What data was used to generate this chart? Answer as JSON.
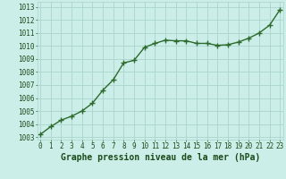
{
  "x": [
    0,
    1,
    2,
    3,
    4,
    5,
    6,
    7,
    8,
    9,
    10,
    11,
    12,
    13,
    14,
    15,
    16,
    17,
    18,
    19,
    20,
    21,
    22,
    23
  ],
  "y": [
    1003.2,
    1003.8,
    1004.3,
    1004.6,
    1005.0,
    1005.6,
    1006.6,
    1007.4,
    1008.7,
    1008.9,
    1009.9,
    1010.2,
    1010.45,
    1010.4,
    1010.4,
    1010.2,
    1010.2,
    1010.05,
    1010.1,
    1010.3,
    1010.6,
    1011.0,
    1011.6,
    1012.8
  ],
  "line_color": "#2d6a2d",
  "marker": "+",
  "marker_size": 4,
  "line_width": 1.0,
  "bg_color": "#cceee8",
  "grid_color": "#aad4cc",
  "xlabel": "Graphe pression niveau de la mer (hPa)",
  "xlabel_fontsize": 7,
  "xlabel_color": "#1a4a1a",
  "xlabel_bold": true,
  "yticks": [
    1003,
    1004,
    1005,
    1006,
    1007,
    1008,
    1009,
    1010,
    1011,
    1012,
    1013
  ],
  "xticks": [
    0,
    1,
    2,
    3,
    4,
    5,
    6,
    7,
    8,
    9,
    10,
    11,
    12,
    13,
    14,
    15,
    16,
    17,
    18,
    19,
    20,
    21,
    22,
    23
  ],
  "ylim": [
    1002.8,
    1013.4
  ],
  "xlim": [
    -0.3,
    23.3
  ],
  "tick_fontsize": 5.5,
  "tick_color": "#1a4a1a"
}
